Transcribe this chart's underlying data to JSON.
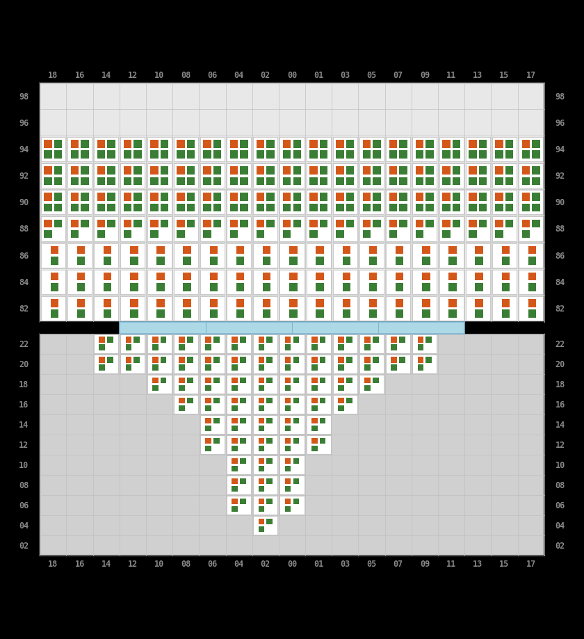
{
  "col_labels": [
    "18",
    "16",
    "14",
    "12",
    "10",
    "08",
    "06",
    "04",
    "02",
    "00",
    "01",
    "03",
    "05",
    "07",
    "09",
    "11",
    "13",
    "15",
    "17"
  ],
  "orange_color": "#d4571a",
  "green_color": "#3a7d34",
  "top_all_rows": [
    82,
    84,
    86,
    88,
    90,
    92,
    94,
    96,
    98
  ],
  "top_filled_rows": [
    82,
    84,
    86,
    88,
    90,
    92,
    94
  ],
  "top_row_mode": {
    "94": "two_two",
    "92": "two_two",
    "90": "two_two",
    "88": "two_one",
    "86": "one_one",
    "84": "one_one",
    "82": "one_one"
  },
  "bottom_all_rows": [
    2,
    4,
    6,
    8,
    10,
    12,
    14,
    16,
    18,
    20,
    22
  ],
  "bottom_filled": {
    "22": [
      2,
      3,
      4,
      5,
      6,
      7,
      8,
      9,
      10,
      11,
      12,
      13,
      14
    ],
    "20": [
      2,
      3,
      4,
      5,
      6,
      7,
      8,
      9,
      10,
      11,
      12,
      13,
      14
    ],
    "18": [
      4,
      5,
      6,
      7,
      8,
      9,
      10,
      11,
      12
    ],
    "16": [
      5,
      6,
      7,
      8,
      9,
      10,
      11
    ],
    "14": [
      6,
      7,
      8,
      9,
      10
    ],
    "12": [
      6,
      7,
      8,
      9,
      10
    ],
    "10": [
      7,
      8,
      9
    ],
    "8": [
      7,
      8,
      9
    ],
    "6": [
      7,
      8,
      9
    ],
    "4": [
      8
    ],
    "2": []
  },
  "divider_color": "#add8e6",
  "divider_border": "#7ab8d4",
  "top_section_bg": "#e8e8e8",
  "top_cell_bg": "#ffffff",
  "bot_section_bg": "#d0d0d0",
  "bot_cell_bg": "#ffffff",
  "label_color": "#888888",
  "grid_color": "#c0c0c0",
  "border_color": "#333333",
  "fig_bg": "#000000"
}
